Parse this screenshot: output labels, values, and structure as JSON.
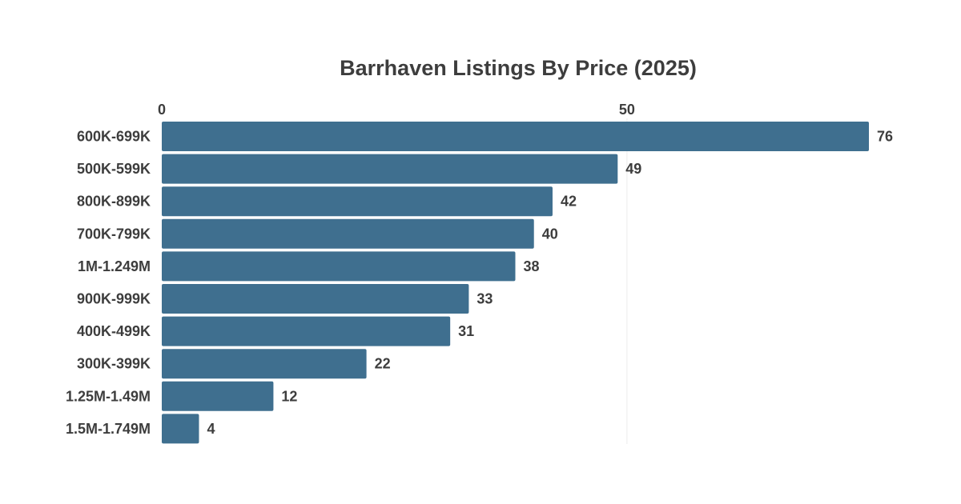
{
  "chart_data": {
    "type": "bar",
    "orientation": "horizontal",
    "title": "Barrhaven Listings By Price (2025)",
    "xlabel": "",
    "ylabel": "",
    "categories": [
      "600K-699K",
      "500K-599K",
      "800K-899K",
      "700K-799K",
      "1M-1.249M",
      "900K-999K",
      "400K-499K",
      "300K-399K",
      "1.25M-1.49M",
      "1.5M-1.749M"
    ],
    "values": [
      76,
      49,
      42,
      40,
      38,
      33,
      31,
      22,
      12,
      4
    ],
    "xlim": [
      0,
      76
    ],
    "xticks": [
      0,
      50
    ],
    "grid": true,
    "axis_position": "top",
    "data_labels": true,
    "bar_color": "#3f6f8f",
    "text_color": "#3d3d3d",
    "grid_color": "#ececec"
  }
}
